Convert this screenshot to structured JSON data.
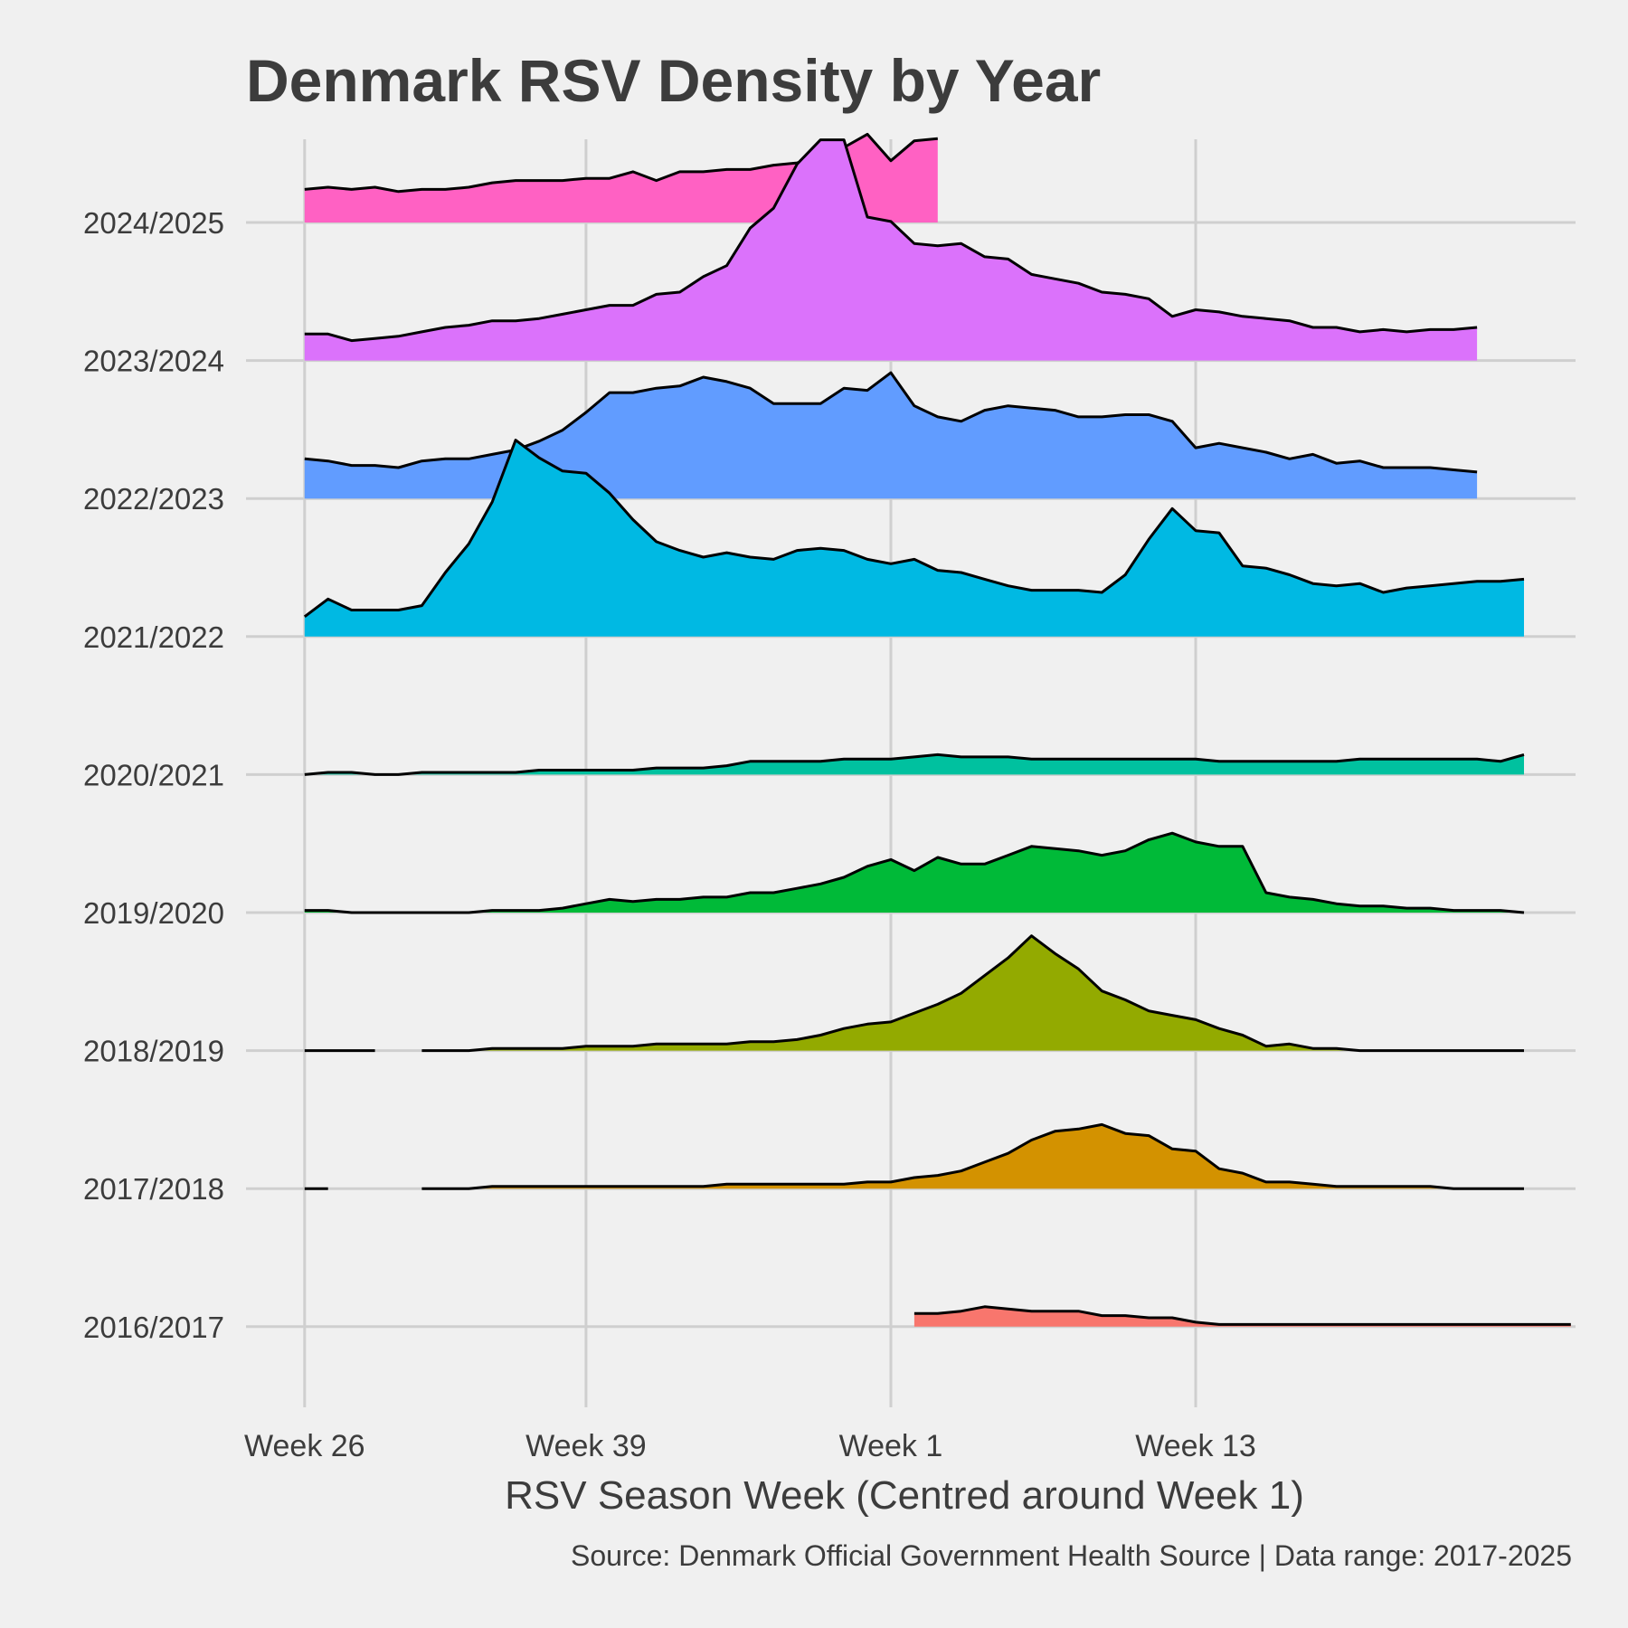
{
  "chart_data": {
    "type": "area",
    "subtype": "ridgeline",
    "title": "Denmark RSV Density by Year",
    "xlabel": "RSV Season Week (Centred around Week 1)",
    "caption": "Source: Denmark Official Government Health Source | Data range: 2017-2025",
    "x_ticks": [
      {
        "label": "Week 26",
        "x": 1
      },
      {
        "label": "Week 39",
        "x": 13
      },
      {
        "label": "Week 1",
        "x": 26
      },
      {
        "label": "Week 13",
        "x": 39
      }
    ],
    "xlim": [
      -1.5,
      55.2
    ],
    "y_step": 1,
    "grid": true,
    "series": [
      {
        "name": "2016/2017",
        "color": "#F8766D",
        "x_start": 27,
        "values": [
          0.06,
          0.06,
          0.07,
          0.09,
          0.08,
          0.07,
          0.07,
          0.07,
          0.05,
          0.05,
          0.04,
          0.04,
          0.02,
          0.01,
          0.01,
          0.01,
          0.01,
          0.01,
          0.01,
          0.01,
          0.01,
          0.01,
          0.01,
          0.01,
          0.01,
          0.01,
          0.01,
          0.01,
          0.01
        ]
      },
      {
        "name": "2017/2018",
        "color": "#D39200",
        "x_start": 1,
        "values": [
          0,
          0,
          null,
          null,
          null,
          0,
          0,
          0,
          0.01,
          0.01,
          0.01,
          0.01,
          0.01,
          0.01,
          0.01,
          0.01,
          0.01,
          0.01,
          0.02,
          0.02,
          0.02,
          0.02,
          0.02,
          0.02,
          0.03,
          0.03,
          0.05,
          0.06,
          0.08,
          0.12,
          0.16,
          0.22,
          0.26,
          0.27,
          0.29,
          0.25,
          0.24,
          0.18,
          0.17,
          0.09,
          0.07,
          0.03,
          0.03,
          0.02,
          0.01,
          0.01,
          0.01,
          0.01,
          0.01,
          0,
          0,
          0,
          0
        ]
      },
      {
        "name": "2018/2019",
        "color": "#93AA00",
        "x_start": 1,
        "values": [
          0,
          0,
          0,
          0,
          null,
          0,
          0,
          0,
          0.01,
          0.01,
          0.01,
          0.01,
          0.02,
          0.02,
          0.02,
          0.03,
          0.03,
          0.03,
          0.03,
          0.04,
          0.04,
          0.05,
          0.07,
          0.1,
          0.12,
          0.13,
          0.17,
          0.21,
          0.26,
          0.34,
          0.42,
          0.52,
          0.44,
          0.37,
          0.27,
          0.23,
          0.18,
          0.16,
          0.14,
          0.1,
          0.07,
          0.02,
          0.03,
          0.01,
          0.01,
          0,
          0,
          0,
          0,
          0,
          0,
          0,
          0
        ]
      },
      {
        "name": "2019/2020",
        "color": "#00BA38",
        "x_start": 1,
        "values": [
          0.01,
          0.01,
          0,
          0,
          0,
          0,
          0,
          0,
          0.01,
          0.01,
          0.01,
          0.02,
          0.04,
          0.06,
          0.05,
          0.06,
          0.06,
          0.07,
          0.07,
          0.09,
          0.09,
          0.11,
          0.13,
          0.16,
          0.21,
          0.24,
          0.19,
          0.25,
          0.22,
          0.22,
          0.26,
          0.3,
          0.29,
          0.28,
          0.26,
          0.28,
          0.33,
          0.36,
          0.32,
          0.3,
          0.3,
          0.09,
          0.07,
          0.06,
          0.04,
          0.03,
          0.03,
          0.02,
          0.02,
          0.01,
          0.01,
          0.01,
          0
        ]
      },
      {
        "name": "2020/2021",
        "color": "#00C19F",
        "x_start": 1,
        "values": [
          0,
          0.01,
          0.01,
          0,
          0,
          0.01,
          0.01,
          0.01,
          0.01,
          0.01,
          0.02,
          0.02,
          0.02,
          0.02,
          0.02,
          0.03,
          0.03,
          0.03,
          0.04,
          0.06,
          0.06,
          0.06,
          0.06,
          0.07,
          0.07,
          0.07,
          0.08,
          0.09,
          0.08,
          0.08,
          0.08,
          0.07,
          0.07,
          0.07,
          0.07,
          0.07,
          0.07,
          0.07,
          0.07,
          0.06,
          0.06,
          0.06,
          0.06,
          0.06,
          0.06,
          0.07,
          0.07,
          0.07,
          0.07,
          0.07,
          0.07,
          0.06,
          0.09
        ]
      },
      {
        "name": "2021/2022",
        "color": "#00B9E3",
        "x_start": 1,
        "values": [
          0.09,
          0.17,
          0.12,
          0.12,
          0.12,
          0.14,
          0.29,
          0.42,
          0.61,
          0.89,
          0.81,
          0.75,
          0.74,
          0.65,
          0.53,
          0.43,
          0.39,
          0.36,
          0.38,
          0.36,
          0.35,
          0.39,
          0.4,
          0.39,
          0.35,
          0.33,
          0.35,
          0.3,
          0.29,
          0.26,
          0.23,
          0.21,
          0.21,
          0.21,
          0.2,
          0.28,
          0.44,
          0.58,
          0.48,
          0.47,
          0.32,
          0.31,
          0.28,
          0.24,
          0.23,
          0.24,
          0.2,
          0.22,
          0.23,
          0.24,
          0.25,
          0.25,
          0.26
        ]
      },
      {
        "name": "2022/2023",
        "color": "#619CFF",
        "x_start": 1,
        "values": [
          0.18,
          0.17,
          0.15,
          0.15,
          0.14,
          0.17,
          0.18,
          0.18,
          0.2,
          0.22,
          0.26,
          0.31,
          0.39,
          0.48,
          0.48,
          0.5,
          0.51,
          0.55,
          0.53,
          0.5,
          0.43,
          0.43,
          0.43,
          0.5,
          0.49,
          0.57,
          0.42,
          0.37,
          0.35,
          0.4,
          0.42,
          0.41,
          0.4,
          0.37,
          0.37,
          0.38,
          0.38,
          0.35,
          0.23,
          0.25,
          0.23,
          0.21,
          0.18,
          0.2,
          0.16,
          0.17,
          0.14,
          0.14,
          0.14,
          0.13,
          0.12
        ]
      },
      {
        "name": "2023/2024",
        "color": "#DB72FB",
        "x_start": 1,
        "values": [
          0.12,
          0.12,
          0.09,
          0.1,
          0.11,
          0.13,
          0.15,
          0.16,
          0.18,
          0.18,
          0.19,
          0.21,
          0.23,
          0.25,
          0.25,
          0.3,
          0.31,
          0.38,
          0.43,
          0.6,
          0.69,
          0.89,
          1.0,
          1.0,
          0.65,
          0.63,
          0.53,
          0.52,
          0.53,
          0.47,
          0.46,
          0.39,
          0.37,
          0.35,
          0.31,
          0.3,
          0.28,
          0.2,
          0.23,
          0.22,
          0.2,
          0.19,
          0.18,
          0.15,
          0.15,
          0.13,
          0.14,
          0.13,
          0.14,
          0.14,
          0.15
        ]
      },
      {
        "name": "2024/2025",
        "color": "#FF61C3",
        "x_start": 1,
        "values": [
          0.15,
          0.16,
          0.15,
          0.16,
          0.14,
          0.15,
          0.15,
          0.16,
          0.18,
          0.19,
          0.19,
          0.19,
          0.2,
          0.2,
          0.23,
          0.19,
          0.23,
          0.23,
          0.24,
          0.24,
          0.26,
          0.27,
          0.3,
          0.34,
          0.4,
          0.28,
          0.37,
          0.38
        ]
      }
    ]
  }
}
